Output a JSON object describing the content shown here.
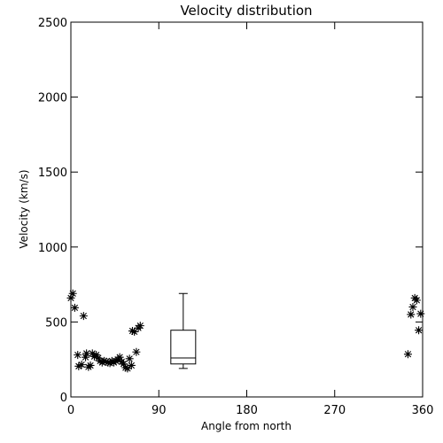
{
  "chart_data": {
    "type": "scatter",
    "title": "Velocity distribution",
    "xlabel": "Angle from north",
    "ylabel": "Velocity (km/s)",
    "xlim": [
      0,
      360
    ],
    "ylim": [
      0,
      2500
    ],
    "xticks": [
      0,
      90,
      180,
      270,
      360
    ],
    "yticks": [
      0,
      500,
      1000,
      1500,
      2000,
      2500
    ],
    "marker": "asterisk",
    "series": [
      {
        "points": [
          [
            0,
            660
          ],
          [
            2,
            690
          ],
          [
            4,
            595
          ],
          [
            7,
            280
          ],
          [
            8,
            205
          ],
          [
            11,
            215
          ],
          [
            13,
            540
          ],
          [
            15,
            265
          ],
          [
            16,
            290
          ],
          [
            18,
            200
          ],
          [
            20,
            210
          ],
          [
            22,
            290
          ],
          [
            24,
            270
          ],
          [
            26,
            280
          ],
          [
            28,
            260
          ],
          [
            30,
            240
          ],
          [
            32,
            230
          ],
          [
            34,
            240
          ],
          [
            36,
            235
          ],
          [
            38,
            230
          ],
          [
            40,
            225
          ],
          [
            42,
            240
          ],
          [
            44,
            230
          ],
          [
            46,
            240
          ],
          [
            48,
            250
          ],
          [
            50,
            265
          ],
          [
            52,
            235
          ],
          [
            54,
            220
          ],
          [
            56,
            195
          ],
          [
            58,
            190
          ],
          [
            60,
            255
          ],
          [
            62,
            210
          ],
          [
            63,
            440
          ],
          [
            65,
            435
          ],
          [
            67,
            300
          ],
          [
            69,
            460
          ],
          [
            71,
            475
          ],
          [
            345,
            285
          ],
          [
            348,
            550
          ],
          [
            350,
            600
          ],
          [
            352,
            660
          ],
          [
            354,
            645
          ],
          [
            356,
            445
          ],
          [
            358,
            555
          ]
        ]
      }
    ],
    "boxplot": {
      "x": 115,
      "whisker_low": 190,
      "q1": 220,
      "median": 260,
      "q3": 445,
      "whisker_high": 690
    },
    "grid": false,
    "legend": "none"
  }
}
